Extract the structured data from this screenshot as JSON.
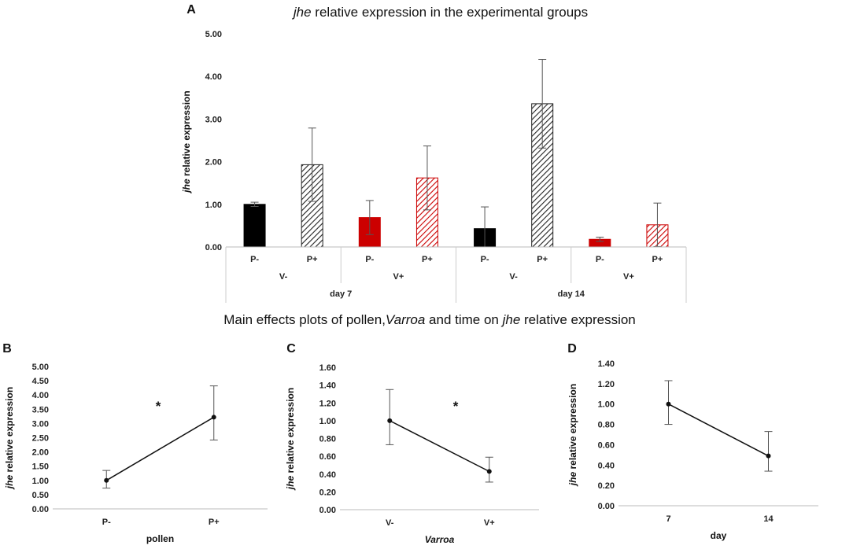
{
  "chart_data": [
    {
      "panel": "A",
      "type": "bar",
      "title_italic": "jhe",
      "title_rest": " relative expression in the experimental groups",
      "ylabel_italic": "jhe",
      "ylabel_rest": " relative expression",
      "ylim": [
        0,
        5
      ],
      "yticks": [
        "0.00",
        "1.00",
        "2.00",
        "3.00",
        "4.00",
        "5.00"
      ],
      "bars": [
        {
          "label": "P-",
          "value": 1.0,
          "error": 0.05,
          "fill": "solid",
          "color": "#000000"
        },
        {
          "label": "P+",
          "value": 1.93,
          "error": 0.86,
          "fill": "hatch",
          "color": "#222222"
        },
        {
          "label": "P-",
          "value": 0.69,
          "error": 0.4,
          "fill": "solid",
          "color": "#cc0000"
        },
        {
          "label": "P+",
          "value": 1.62,
          "error": 0.75,
          "fill": "hatch",
          "color": "#cc0000"
        },
        {
          "label": "P-",
          "value": 0.43,
          "error": 0.51,
          "fill": "solid",
          "color": "#000000"
        },
        {
          "label": "P+",
          "value": 3.36,
          "error": 1.04,
          "fill": "hatch",
          "color": "#222222"
        },
        {
          "label": "P-",
          "value": 0.18,
          "error": 0.05,
          "fill": "solid",
          "color": "#cc0000"
        },
        {
          "label": "P+",
          "value": 0.52,
          "error": 0.51,
          "fill": "hatch",
          "color": "#cc0000"
        }
      ],
      "varroa_groups": [
        "V-",
        "V+",
        "V-",
        "V+"
      ],
      "day_groups": [
        "day 7",
        "day 14"
      ]
    },
    {
      "panel": "B",
      "type": "line",
      "categories": [
        "P-",
        "P+"
      ],
      "values": [
        1.0,
        3.22
      ],
      "err_low": [
        0.27,
        0.8
      ],
      "err_high": [
        0.35,
        1.1
      ],
      "ylim": [
        0,
        5
      ],
      "yticks": [
        "0.00",
        "0.50",
        "1.00",
        "1.50",
        "2.00",
        "2.50",
        "3.00",
        "3.50",
        "4.00",
        "4.50",
        "5.00"
      ],
      "xlabel": "pollen",
      "xlabel_italic": false,
      "ylabel_italic": "jhe",
      "ylabel_rest": " relative expression",
      "significance": "*"
    },
    {
      "panel": "C",
      "type": "line",
      "categories": [
        "V-",
        "V+"
      ],
      "values": [
        1.0,
        0.43
      ],
      "err_low": [
        0.27,
        0.12
      ],
      "err_high": [
        0.35,
        0.16
      ],
      "ylim": [
        0,
        1.6
      ],
      "yticks": [
        "0.00",
        "0.20",
        "0.40",
        "0.60",
        "0.80",
        "1.00",
        "1.20",
        "1.40",
        "1.60"
      ],
      "xlabel": "Varroa",
      "xlabel_italic": true,
      "ylabel_italic": "jhe",
      "ylabel_rest": " relative expression",
      "significance": "*"
    },
    {
      "panel": "D",
      "type": "line",
      "categories": [
        "7",
        "14"
      ],
      "values": [
        1.0,
        0.49
      ],
      "err_low": [
        0.2,
        0.15
      ],
      "err_high": [
        0.23,
        0.24
      ],
      "ylim": [
        0,
        1.4
      ],
      "yticks": [
        "0.00",
        "0.20",
        "0.40",
        "0.60",
        "0.80",
        "1.00",
        "1.20",
        "1.40"
      ],
      "xlabel": "day",
      "xlabel_italic": false,
      "ylabel_italic": "jhe",
      "ylabel_rest": " relative expression",
      "significance": ""
    }
  ],
  "main_effects_title": {
    "part1": "Main effects plots of pollen,",
    "part2_italic": "Varroa",
    "part3": " and time on ",
    "part4_italic": "jhe",
    "part5": " relative expression"
  }
}
